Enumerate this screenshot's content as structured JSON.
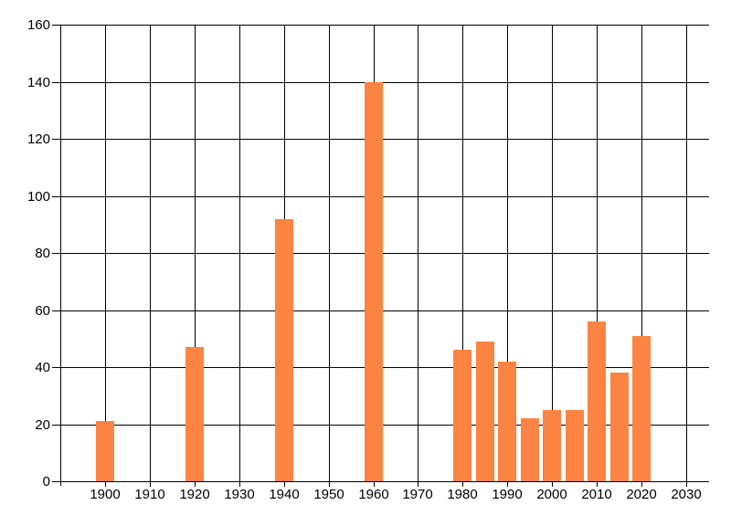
{
  "chart_data": {
    "type": "bar",
    "title": "",
    "xlabel": "",
    "ylabel": "",
    "x": [
      1900,
      1920,
      1940,
      1960,
      1980,
      1985,
      1990,
      1995,
      2000,
      2005,
      2010,
      2015,
      2020
    ],
    "values": [
      21,
      47,
      92,
      140,
      46,
      49,
      42,
      22,
      25,
      25,
      56,
      38,
      51
    ],
    "xlim": [
      1890,
      2035
    ],
    "ylim": [
      0,
      160
    ],
    "x_tick_step": 10,
    "y_tick_step": 20,
    "x_tick_labels": [
      "1900",
      "1910",
      "1920",
      "1930",
      "1940",
      "1950",
      "1960",
      "1970",
      "1980",
      "1990",
      "2000",
      "2010",
      "2020",
      "2030"
    ],
    "y_tick_labels": [
      "0",
      "20",
      "40",
      "60",
      "80",
      "100",
      "120",
      "140",
      "160"
    ],
    "grid": "on",
    "legend_position": "none",
    "bar_color": "#fc8443",
    "grid_color": "#000000",
    "axis_color": "#000000",
    "label_color": "#000000",
    "background_color": "#ffffff"
  }
}
